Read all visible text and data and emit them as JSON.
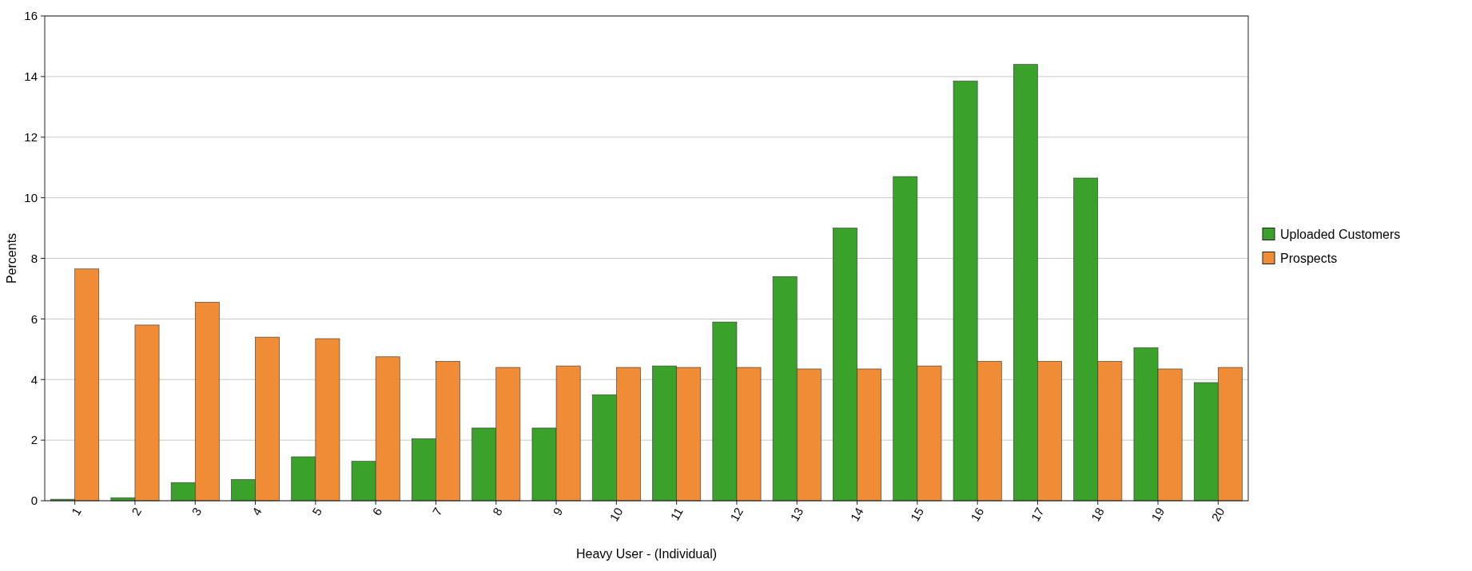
{
  "chart_data": {
    "type": "bar",
    "xlabel": "Heavy User - (Individual)",
    "ylabel": "Percents",
    "categories": [
      "1",
      "2",
      "3",
      "4",
      "5",
      "6",
      "7",
      "8",
      "9",
      "10",
      "11",
      "12",
      "13",
      "14",
      "15",
      "16",
      "17",
      "18",
      "19",
      "20"
    ],
    "series": [
      {
        "name": "Uploaded Customers",
        "color": "#3aa12a",
        "values": [
          0.05,
          0.1,
          0.6,
          0.7,
          1.45,
          1.3,
          2.05,
          2.4,
          2.4,
          3.5,
          4.45,
          5.9,
          7.4,
          9.0,
          10.7,
          13.85,
          14.4,
          10.65,
          5.05,
          3.9
        ]
      },
      {
        "name": "Prospects",
        "color": "#ef8c35",
        "values": [
          7.65,
          5.8,
          6.55,
          5.4,
          5.35,
          4.75,
          4.6,
          4.4,
          4.45,
          4.4,
          4.4,
          4.4,
          4.35,
          4.35,
          4.45,
          4.6,
          4.6,
          4.6,
          4.35,
          4.4
        ]
      }
    ],
    "ylim": [
      0,
      16
    ],
    "yticks": [
      0,
      2,
      4,
      6,
      8,
      10,
      12,
      14,
      16
    ],
    "grid": "y",
    "legend": "right"
  }
}
